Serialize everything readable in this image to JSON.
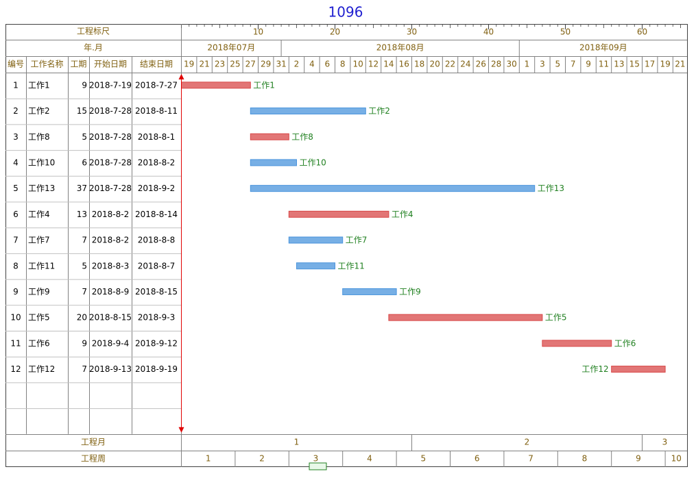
{
  "title": "1096",
  "header": {
    "ruler_label": "工程标尺",
    "month_label": "年.月",
    "columns": [
      "编号",
      "工作名称",
      "工期",
      "开始日期",
      "结束日期"
    ]
  },
  "ruler_ticks": [
    10,
    20,
    30,
    40,
    50,
    60
  ],
  "months": [
    "2018年07月",
    "2018年08月",
    "2018年09月"
  ],
  "days": [
    19,
    21,
    23,
    25,
    27,
    29,
    31,
    2,
    4,
    6,
    8,
    10,
    12,
    14,
    16,
    18,
    20,
    22,
    24,
    26,
    28,
    30,
    1,
    3,
    5,
    7,
    9,
    11,
    13,
    15,
    17,
    19,
    21
  ],
  "tasks": [
    {
      "id": 1,
      "name": "工作1",
      "duration": 9,
      "start": "2018-7-19",
      "end": "2018-7-27",
      "color": "#d84848"
    },
    {
      "id": 2,
      "name": "工作2",
      "duration": 15,
      "start": "2018-7-28",
      "end": "2018-8-11",
      "color": "#4a94dc"
    },
    {
      "id": 3,
      "name": "工作8",
      "duration": 5,
      "start": "2018-7-28",
      "end": "2018-8-1",
      "color": "#d84848"
    },
    {
      "id": 4,
      "name": "工作10",
      "duration": 6,
      "start": "2018-7-28",
      "end": "2018-8-2",
      "color": "#4a94dc"
    },
    {
      "id": 5,
      "name": "工作13",
      "duration": 37,
      "start": "2018-7-28",
      "end": "2018-9-2",
      "color": "#4a94dc"
    },
    {
      "id": 6,
      "name": "工作4",
      "duration": 13,
      "start": "2018-8-2",
      "end": "2018-8-14",
      "color": "#d84848"
    },
    {
      "id": 7,
      "name": "工作7",
      "duration": 7,
      "start": "2018-8-2",
      "end": "2018-8-8",
      "color": "#4a94dc"
    },
    {
      "id": 8,
      "name": "工作11",
      "duration": 5,
      "start": "2018-8-3",
      "end": "2018-8-7",
      "color": "#4a94dc"
    },
    {
      "id": 9,
      "name": "工作9",
      "duration": 7,
      "start": "2018-8-9",
      "end": "2018-8-15",
      "color": "#4a94dc"
    },
    {
      "id": 10,
      "name": "工作5",
      "duration": 20,
      "start": "2018-8-15",
      "end": "2018-9-3",
      "color": "#d84848"
    },
    {
      "id": 11,
      "name": "工作6",
      "duration": 9,
      "start": "2018-9-4",
      "end": "2018-9-12",
      "color": "#d84848"
    },
    {
      "id": 12,
      "name": "工作12",
      "duration": 7,
      "start": "2018-9-13",
      "end": "2018-9-19",
      "color": "#d84848"
    }
  ],
  "footer": {
    "month_label": "工程月",
    "months": [
      1,
      2,
      3
    ],
    "week_label": "工程周",
    "weeks": [
      1,
      2,
      3,
      4,
      5,
      6,
      7,
      8,
      9,
      10
    ]
  }
}
